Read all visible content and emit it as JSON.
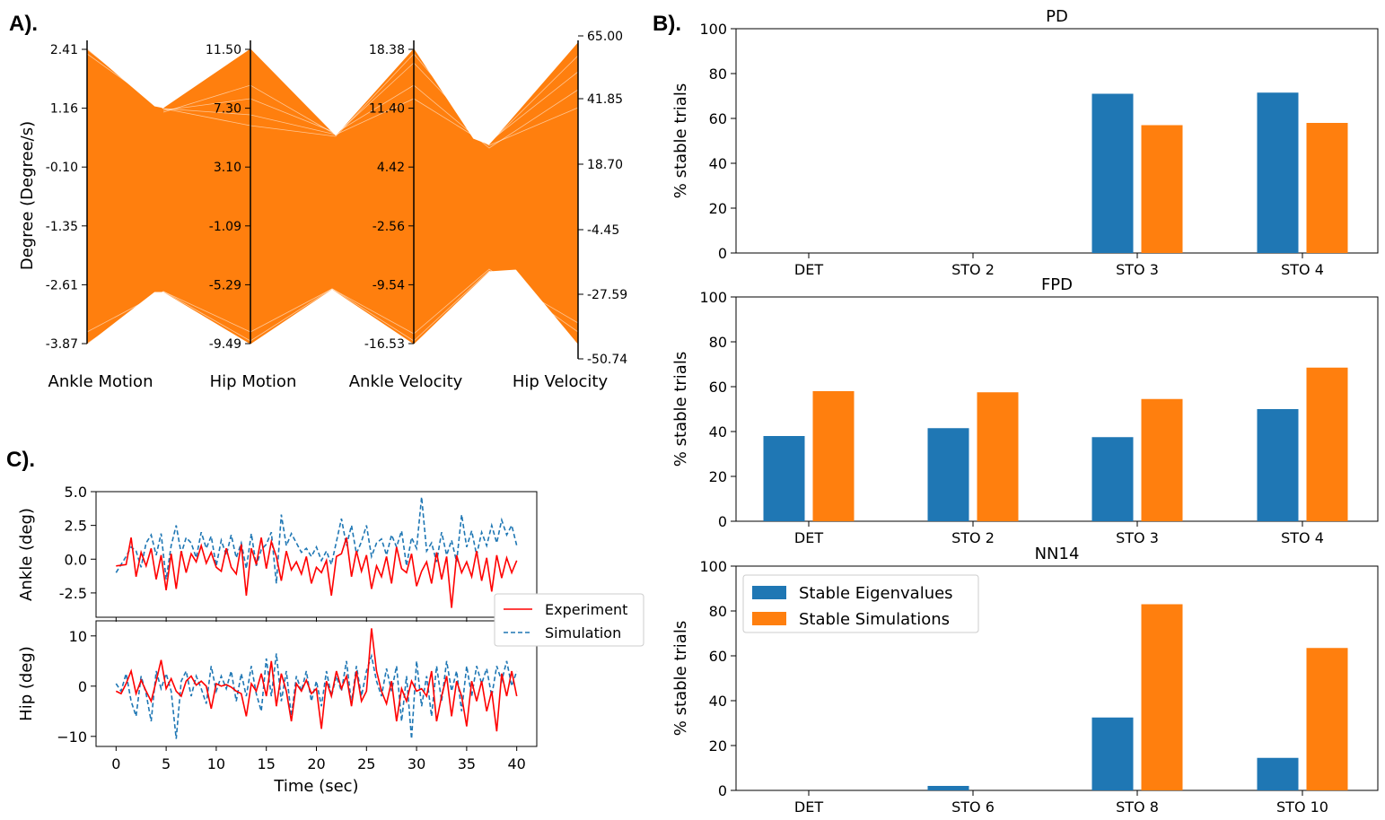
{
  "panel_labels": {
    "a": "A).",
    "b": "B).",
    "c": "C)."
  },
  "colors": {
    "blue": "#1f77b4",
    "orange": "#ff7f0e",
    "red": "#ff0000"
  },
  "chart_data": [
    {
      "id": "A",
      "type": "parallel-coordinates",
      "ylabel": "Degree (Degree/s)",
      "axes": [
        {
          "name": "Ankle Motion",
          "ticks": [
            "2.41",
            "1.16",
            "-0.10",
            "-1.35",
            "-2.61",
            "-3.87"
          ],
          "range": [
            -3.87,
            2.41
          ]
        },
        {
          "name": "Hip Motion",
          "ticks": [
            "11.50",
            "7.30",
            "3.10",
            "-1.09",
            "-5.29",
            "-9.49"
          ],
          "range": [
            -9.49,
            11.5
          ]
        },
        {
          "name": "Ankle Velocity",
          "ticks": [
            "18.38",
            "11.40",
            "4.42",
            "-2.56",
            "-9.54",
            "-16.53"
          ],
          "range": [
            -16.53,
            18.38
          ]
        },
        {
          "name": "Hip Velocity",
          "ticks": [
            "65.00",
            "41.85",
            "18.70",
            "-4.45",
            "-27.59",
            "-50.74"
          ],
          "range": [
            -50.74,
            65
          ]
        }
      ],
      "line_color": "#ff7f0e"
    },
    {
      "id": "B1",
      "type": "bar",
      "title": "PD",
      "ylabel": "% stable trials",
      "ylim": [
        0,
        100
      ],
      "yticks": [
        "0",
        "20",
        "40",
        "60",
        "80",
        "100"
      ],
      "categories": [
        "DET",
        "STO 2",
        "STO 3",
        "STO 4"
      ],
      "series": [
        {
          "name": "Stable Eigenvalues",
          "color": "#1f77b4",
          "values": [
            0,
            0,
            71,
            71.5
          ]
        },
        {
          "name": "Stable Simulations",
          "color": "#ff7f0e",
          "values": [
            0,
            0,
            57,
            58
          ]
        }
      ]
    },
    {
      "id": "B2",
      "type": "bar",
      "title": "FPD",
      "ylabel": "% stable trials",
      "ylim": [
        0,
        100
      ],
      "yticks": [
        "0",
        "20",
        "40",
        "60",
        "80",
        "100"
      ],
      "categories": [
        "DET",
        "STO 2",
        "STO 3",
        "STO 4"
      ],
      "series": [
        {
          "name": "Stable Eigenvalues",
          "color": "#1f77b4",
          "values": [
            38,
            41.5,
            37.5,
            50
          ]
        },
        {
          "name": "Stable Simulations",
          "color": "#ff7f0e",
          "values": [
            58,
            57.5,
            54.5,
            68.5
          ]
        }
      ]
    },
    {
      "id": "B3",
      "type": "bar",
      "title": "NN14",
      "ylabel": "% stable trials",
      "ylim": [
        0,
        100
      ],
      "yticks": [
        "0",
        "20",
        "40",
        "60",
        "80",
        "100"
      ],
      "categories": [
        "DET",
        "STO 6",
        "STO 8",
        "STO 10"
      ],
      "legend_loc": "upper left",
      "legend": [
        "Stable Eigenvalues",
        "Stable Simulations"
      ],
      "series": [
        {
          "name": "Stable Eigenvalues",
          "color": "#1f77b4",
          "values": [
            0,
            2,
            32.5,
            14.5
          ]
        },
        {
          "name": "Stable Simulations",
          "color": "#ff7f0e",
          "values": [
            0,
            0,
            83,
            63.5
          ]
        }
      ]
    },
    {
      "id": "C1",
      "type": "line",
      "ylabel": "Ankle (deg)",
      "xlim": [
        -2,
        42
      ],
      "ylim": [
        -4.3,
        5.0
      ],
      "yticks": [
        "5.0",
        "2.5",
        "0.0",
        "-2.5"
      ],
      "series": [
        {
          "name": "Experiment",
          "color": "#ff0000",
          "style": "solid",
          "x": [
            0,
            1,
            1.5,
            2,
            2.5,
            3,
            3.5,
            4,
            4.5,
            5,
            5.5,
            6,
            6.5,
            7,
            7.5,
            8,
            8.5,
            9,
            9.5,
            10,
            10.5,
            11,
            11.5,
            12,
            12.5,
            13,
            13.5,
            14,
            14.5,
            15,
            15.5,
            16,
            16.5,
            17,
            17.5,
            18,
            18.5,
            19,
            19.5,
            20,
            20.5,
            21,
            21.5,
            22,
            22.5,
            23,
            23.5,
            24,
            24.5,
            25,
            25.5,
            26,
            26.5,
            27,
            27.5,
            28,
            28.5,
            29,
            29.5,
            30,
            30.5,
            31,
            31.5,
            32,
            32.5,
            33,
            33.5,
            34,
            34.5,
            35,
            35.5,
            36,
            36.5,
            37,
            37.5,
            38,
            38.5,
            39,
            39.5,
            40
          ],
          "y": [
            -0.5,
            -0.4,
            1.6,
            -1.3,
            0.5,
            -0.5,
            0.8,
            -1.5,
            0.3,
            -2.3,
            0.4,
            -2.2,
            0.6,
            -1.0,
            0.4,
            -0.2,
            1.0,
            -0.3,
            0.5,
            -0.6,
            -0.9,
            0.8,
            -0.6,
            -1.1,
            1.1,
            -2.7,
            0.8,
            -0.4,
            1.6,
            -0.7,
            1.3,
            0.2,
            -1.6,
            0.6,
            -0.8,
            -0.2,
            -1.1,
            0.2,
            -1.8,
            -0.6,
            -1.0,
            -0.1,
            -2.7,
            0.2,
            0.4,
            1.6,
            -1.3,
            0.6,
            -0.9,
            0.3,
            -2.2,
            -0.5,
            -1.3,
            0.2,
            -1.8,
            0.9,
            -0.7,
            -1.0,
            0.4,
            -2.0,
            -0.9,
            -0.2,
            -1.8,
            0.5,
            -1.5,
            0.2,
            -3.6,
            0.3,
            -1.0,
            -0.2,
            -1.3,
            0.6,
            -1.6,
            0.1,
            -2.4,
            0.3,
            -1.4,
            0.1,
            -1.0,
            -0.1
          ]
        },
        {
          "name": "Simulation",
          "color": "#1f77b4",
          "style": "dashed",
          "x": [
            0,
            1,
            1.5,
            2,
            2.5,
            3,
            3.5,
            4,
            4.5,
            5,
            5.5,
            6,
            6.5,
            7,
            7.5,
            8,
            8.5,
            9,
            9.5,
            10,
            10.5,
            11,
            11.5,
            12,
            12.5,
            13,
            13.5,
            14,
            14.5,
            15,
            15.5,
            16,
            16.5,
            17,
            17.5,
            18,
            18.5,
            19,
            19.5,
            20,
            20.5,
            21,
            21.5,
            22,
            22.5,
            23,
            23.5,
            24,
            24.5,
            25,
            25.5,
            26,
            26.5,
            27,
            27.5,
            28,
            28.5,
            29,
            29.5,
            30,
            30.5,
            31,
            31.5,
            32,
            32.5,
            33,
            33.5,
            34,
            34.5,
            35,
            35.5,
            36,
            36.5,
            37,
            37.5,
            38,
            38.5,
            39,
            39.5,
            40
          ],
          "y": [
            -1.0,
            0.2,
            0.9,
            0.6,
            -0.6,
            1.2,
            1.8,
            0.3,
            1.9,
            -1.5,
            1.0,
            2.5,
            0.4,
            1.6,
            1.2,
            0.1,
            2.0,
            0.8,
            1.7,
            -0.5,
            1.4,
            0.3,
            1.8,
            0.1,
            1.2,
            -0.7,
            1.9,
            -0.5,
            0.7,
            1.1,
            2.0,
            -1.8,
            3.3,
            1.0,
            1.9,
            1.2,
            0.5,
            0.8,
            0.2,
            0.9,
            -0.1,
            0.6,
            -0.4,
            1.3,
            3.0,
            1.0,
            2.5,
            0.4,
            1.3,
            2.5,
            0.2,
            1.2,
            1.5,
            0.3,
            1.8,
            0.9,
            2.1,
            -0.5,
            1.6,
            0.8,
            4.6,
            0.6,
            1.2,
            -0.2,
            2.0,
            0.3,
            1.4,
            -0.2,
            3.3,
            0.9,
            2.1,
            0.3,
            2.0,
            1.0,
            2.5,
            1.2,
            2.9,
            1.8,
            2.5,
            1.0
          ]
        }
      ]
    },
    {
      "id": "C2",
      "type": "line",
      "ylabel": "Hip (deg)",
      "xlabel": "Time (sec)",
      "xlim": [
        -2,
        42
      ],
      "xticks": [
        "0",
        "5",
        "10",
        "15",
        "20",
        "25",
        "30",
        "35",
        "40"
      ],
      "ylim": [
        -12,
        13
      ],
      "yticks": [
        "10",
        "0",
        "−10"
      ],
      "legend": [
        "Experiment",
        "Simulation"
      ],
      "series": [
        {
          "name": "Experiment",
          "color": "#ff0000",
          "style": "solid",
          "x": [
            0,
            0.5,
            1,
            1.5,
            2,
            2.5,
            3,
            3.5,
            4,
            4.5,
            5,
            5.5,
            6,
            6.5,
            7,
            7.5,
            8,
            8.5,
            9,
            9.5,
            10,
            10.5,
            11,
            11.5,
            12,
            12.5,
            13,
            13.5,
            14,
            14.5,
            15,
            15.5,
            16,
            16.5,
            17,
            17.5,
            18,
            18.5,
            19,
            19.5,
            20,
            20.5,
            21,
            21.5,
            22,
            22.5,
            23,
            23.5,
            24,
            24.5,
            25,
            25.5,
            26,
            26.5,
            27,
            27.5,
            28,
            28.5,
            29,
            29.5,
            30,
            30.5,
            31,
            31.5,
            32,
            32.5,
            33,
            33.5,
            34,
            34.5,
            35,
            35.5,
            36,
            36.5,
            37,
            37.5,
            38,
            38.5,
            39,
            39.5,
            40
          ],
          "y": [
            -1.0,
            -1.5,
            0.5,
            3.0,
            -1.5,
            1.2,
            -1.0,
            -3.0,
            1.0,
            5.2,
            -0.5,
            1.5,
            -1.0,
            -2.0,
            1.0,
            2.0,
            0.2,
            1.0,
            0.0,
            -4.5,
            0.5,
            0.0,
            0.3,
            -0.2,
            -1.0,
            -1.5,
            -6.0,
            0.5,
            -1.0,
            2.5,
            -2.0,
            5.0,
            -4.0,
            2.5,
            -1.0,
            -7.0,
            0.5,
            -1.0,
            1.2,
            -1.5,
            -0.5,
            -8.5,
            1.0,
            -2.0,
            3.0,
            -0.5,
            2.0,
            -4.0,
            3.0,
            -3.0,
            -1.0,
            11.5,
            3.0,
            -1.0,
            -3.5,
            1.0,
            -7.0,
            -0.5,
            -3.0,
            1.0,
            -1.0,
            -0.5,
            -2.0,
            3.0,
            -7.0,
            -2.0,
            2.0,
            -6.0,
            1.0,
            -2.0,
            -8.0,
            1.0,
            -3.0,
            1.0,
            -5.0,
            -1.0,
            -9.0,
            2.5,
            -2.0,
            3.0,
            -2.0
          ]
        },
        {
          "name": "Simulation",
          "color": "#1f77b4",
          "style": "dashed",
          "x": [
            0,
            0.5,
            1,
            1.5,
            2,
            2.5,
            3,
            3.5,
            4,
            4.5,
            5,
            5.5,
            6,
            6.5,
            7,
            7.5,
            8,
            8.5,
            9,
            9.5,
            10,
            10.5,
            11,
            11.5,
            12,
            12.5,
            13,
            13.5,
            14,
            14.5,
            15,
            15.5,
            16,
            16.5,
            17,
            17.5,
            18,
            18.5,
            19,
            19.5,
            20,
            20.5,
            21,
            21.5,
            22,
            22.5,
            23,
            23.5,
            24,
            24.5,
            25,
            25.5,
            26,
            26.5,
            27,
            27.5,
            28,
            28.5,
            29,
            29.5,
            30,
            30.5,
            31,
            31.5,
            32,
            32.5,
            33,
            33.5,
            34,
            34.5,
            35,
            35.5,
            36,
            36.5,
            37,
            37.5,
            38,
            38.5,
            39,
            39.5,
            40
          ],
          "y": [
            0.5,
            -1.0,
            2.5,
            -3.0,
            -6.0,
            2.0,
            -1.5,
            -7.0,
            3.0,
            -0.5,
            2.5,
            -1.0,
            -10.5,
            1.0,
            3.0,
            -2.0,
            2.0,
            -0.5,
            -3.5,
            4.0,
            -1.0,
            2.0,
            -0.5,
            3.0,
            -3.0,
            2.5,
            -2.0,
            4.0,
            -1.5,
            -5.0,
            5.5,
            -2.0,
            6.5,
            -3.0,
            3.0,
            -6.0,
            2.0,
            -1.0,
            3.0,
            -3.0,
            1.0,
            -4.0,
            3.0,
            -2.0,
            2.0,
            -1.0,
            5.0,
            -3.5,
            4.0,
            -2.0,
            3.0,
            6.0,
            1.0,
            -2.0,
            3.5,
            -1.0,
            4.0,
            -7.0,
            2.0,
            -10.5,
            5.0,
            -4.0,
            2.0,
            -6.0,
            4.0,
            -3.0,
            5.0,
            -1.0,
            3.0,
            -5.0,
            4.0,
            -2.0,
            4.0,
            0.5,
            3.5,
            -2.0,
            4.0,
            1.0,
            5.0,
            0.0,
            3.0
          ]
        }
      ]
    }
  ]
}
